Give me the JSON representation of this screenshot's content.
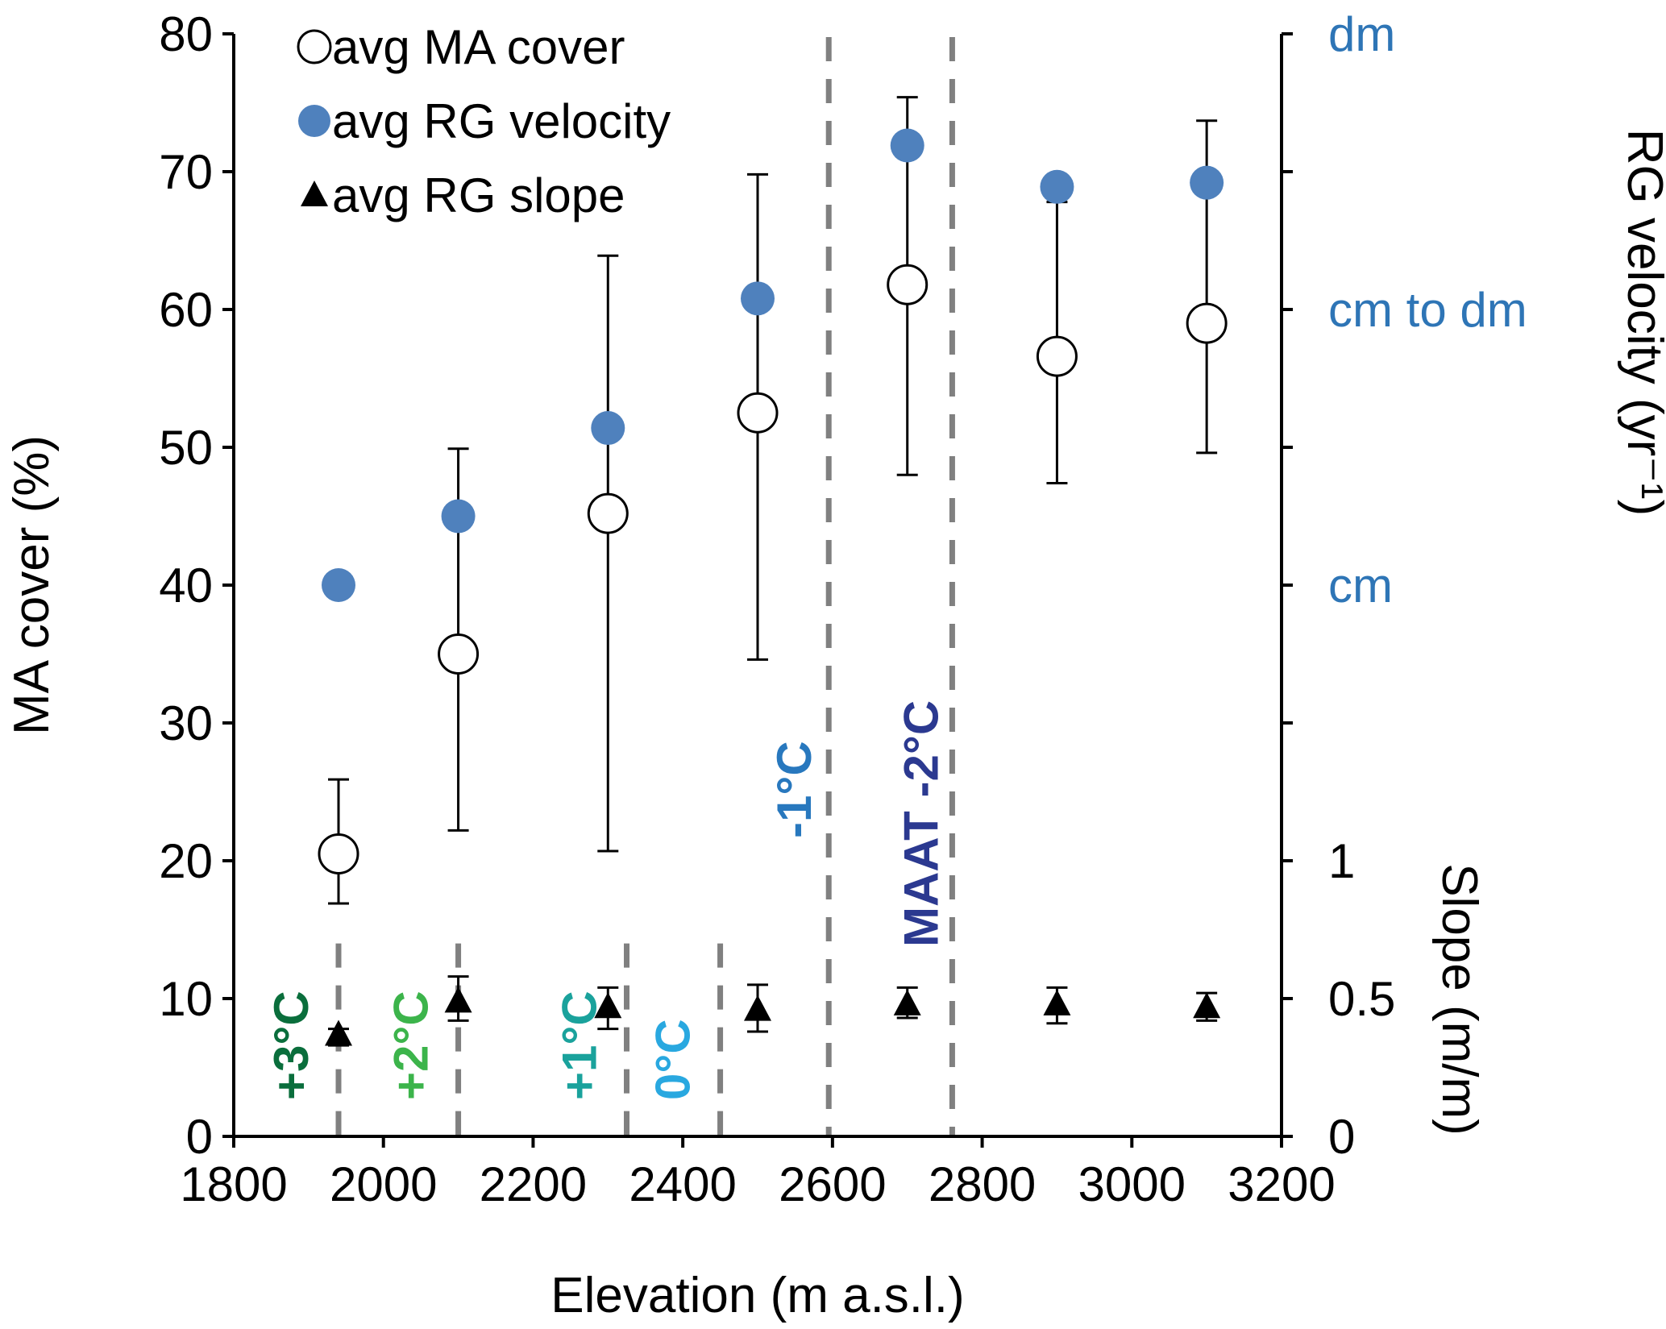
{
  "chart_data": {
    "type": "scatter",
    "xlabel": "Elevation (m a.s.l.)",
    "ylabel": "MA cover (%)",
    "y2label_velocity": "RG velocity (yr⁻¹)",
    "y2label_slope": "Slope (m/m)",
    "xlim": [
      1800,
      3200
    ],
    "ylim": [
      0,
      80
    ],
    "x_ticks": [
      1800,
      2000,
      2200,
      2400,
      2600,
      2800,
      3000,
      3200
    ],
    "y_ticks": [
      0,
      10,
      20,
      30,
      40,
      50,
      60,
      70,
      80
    ],
    "slope_ticks": [
      {
        "label": "0",
        "value": 0
      },
      {
        "label": "0.5",
        "value": 0.5
      },
      {
        "label": "1",
        "value": 1
      }
    ],
    "velocity_ticks": [
      {
        "label": "cm",
        "position": 40
      },
      {
        "label": "cm to dm",
        "position": 60
      },
      {
        "label": "dm",
        "position": 80
      }
    ],
    "legend": {
      "placement": "top-left",
      "entries": [
        "avg MA cover",
        "avg RG velocity",
        "avg RG slope"
      ]
    },
    "series": [
      {
        "name": "avg MA cover",
        "marker": "open-circle",
        "x": [
          1940,
          2100,
          2300,
          2500,
          2700,
          2900,
          3100
        ],
        "y": [
          20.5,
          35,
          45.2,
          52.5,
          61.8,
          56.6,
          59
        ],
        "err_low": [
          16.9,
          22.2,
          20.7,
          34.6,
          48,
          47.4,
          49.6
        ],
        "err_high": [
          25.9,
          49.9,
          63.9,
          69.8,
          75.4,
          67.8,
          73.7
        ]
      },
      {
        "name": "avg RG velocity",
        "marker": "filled-circle",
        "color": "#4f81bd",
        "x": [
          1940,
          2100,
          2300,
          2500,
          2700,
          2900,
          3100
        ],
        "y_position": [
          40,
          45,
          51.4,
          60.8,
          71.9,
          68.9,
          69.2
        ]
      },
      {
        "name": "avg RG slope",
        "marker": "filled-triangle",
        "x": [
          1940,
          2100,
          2300,
          2500,
          2700,
          2900,
          3100
        ],
        "y": [
          0.37,
          0.49,
          0.47,
          0.46,
          0.48,
          0.48,
          0.47
        ],
        "err_low": [
          0.33,
          0.42,
          0.39,
          0.38,
          0.43,
          0.41,
          0.42
        ],
        "err_high": [
          0.39,
          0.58,
          0.54,
          0.55,
          0.54,
          0.54,
          0.52
        ]
      }
    ],
    "isotherms": [
      {
        "x": 1940,
        "label": "+3°C",
        "color": "#0a6e3c",
        "extent": "lower"
      },
      {
        "x": 2100,
        "label": "+2°C",
        "color": "#3cb44b",
        "extent": "lower"
      },
      {
        "x": 2325,
        "label": "+1°C",
        "color": "#1aa29c",
        "extent": "lower"
      },
      {
        "x": 2450,
        "label": "0°C",
        "color": "#29a8e0",
        "extent": "lower"
      },
      {
        "x": 2595,
        "label": "-1°C",
        "color": "#2878be",
        "extent": "full"
      },
      {
        "x": 2760,
        "label": "MAAT -2°C",
        "color": "#2b3990",
        "extent": "full"
      }
    ]
  }
}
